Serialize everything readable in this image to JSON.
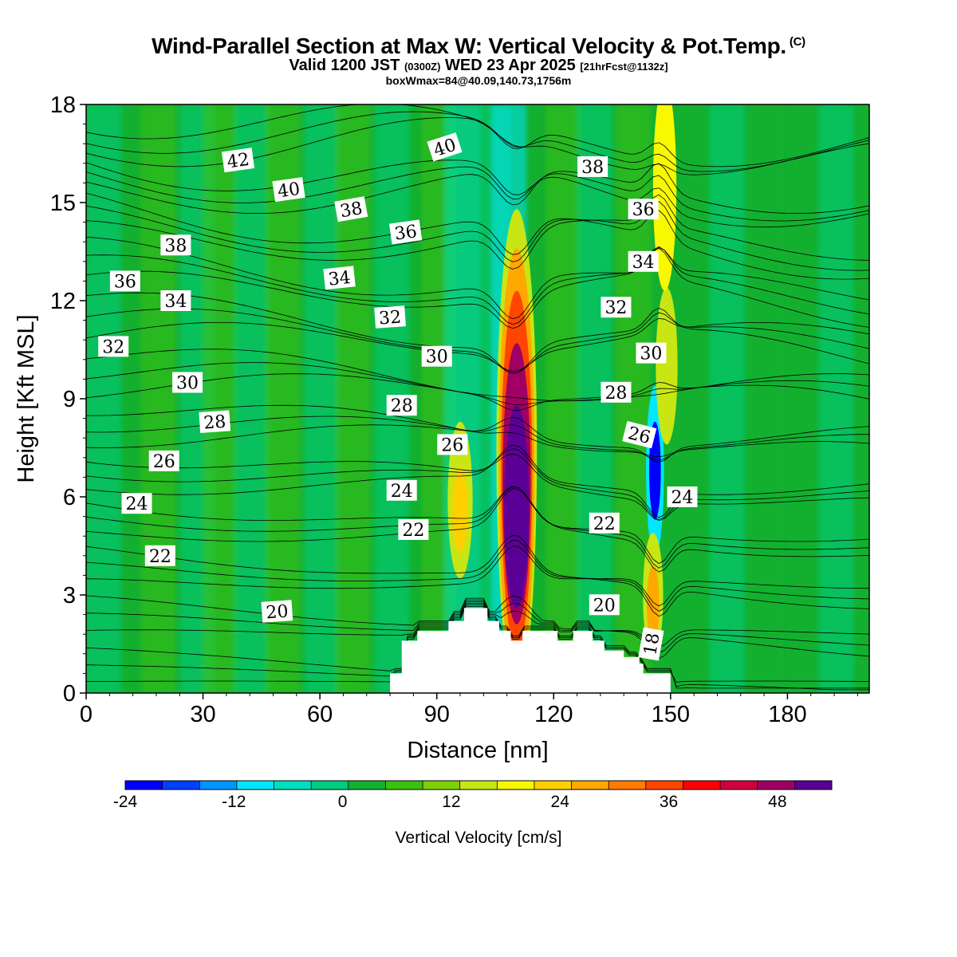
{
  "header": {
    "title": "Wind-Parallel Section at Max W: Vertical Velocity & Pot.Temp.",
    "copyright": "(C)",
    "valid_prefix": "Valid 1200 JST",
    "utc": "(0300Z)",
    "valid_suffix": "WED 23 Apr 2025",
    "fcst": "[21hrFcst@1132z]",
    "box": "boxWmax=84@40.09,140.73,1756m"
  },
  "chart_data": {
    "type": "contour",
    "xlabel": "Distance [nm]",
    "ylabel": "Height [Kft MSL]",
    "xlim": [
      0,
      201
    ],
    "ylim": [
      0,
      18
    ],
    "x_ticks": [
      "0",
      "30",
      "60",
      "90",
      "120",
      "150",
      "180"
    ],
    "y_ticks": [
      "0",
      "3",
      "6",
      "9",
      "12",
      "15",
      "18"
    ],
    "colorbar": {
      "label": "Vertical Velocity [cm/s]",
      "tick_labels": [
        "-24",
        "-12",
        "0",
        "12",
        "24",
        "36",
        "48"
      ],
      "min": -24,
      "max": 54,
      "step": 4,
      "colors": [
        "#0000ff",
        "#0040ff",
        "#0096ff",
        "#00e6ff",
        "#00e0c0",
        "#00cd82",
        "#13b030",
        "#3cc010",
        "#7ed00a",
        "#c8e614",
        "#f8f800",
        "#ffd000",
        "#ffa800",
        "#ff7c00",
        "#ff4600",
        "#ff0000",
        "#d2003c",
        "#a00064",
        "#5a0096"
      ]
    },
    "theta_label_values": [
      "42",
      "40",
      "38",
      "36",
      "34",
      "32",
      "30",
      "28",
      "26",
      "24",
      "22",
      "20",
      "18"
    ],
    "theta_labels": [
      {
        "x": 39,
        "y": 16.3,
        "text": "42",
        "rot": -8
      },
      {
        "x": 52,
        "y": 15.4,
        "text": "40",
        "rot": -8
      },
      {
        "x": 68,
        "y": 14.8,
        "text": "38",
        "rot": -10
      },
      {
        "x": 82,
        "y": 14.1,
        "text": "36",
        "rot": -8
      },
      {
        "x": 92,
        "y": 16.7,
        "text": "40",
        "rot": -18
      },
      {
        "x": 130,
        "y": 16.1,
        "text": "38",
        "rot": 0
      },
      {
        "x": 143,
        "y": 14.8,
        "text": "36",
        "rot": 0
      },
      {
        "x": 143,
        "y": 13.2,
        "text": "34",
        "rot": 0
      },
      {
        "x": 136,
        "y": 11.8,
        "text": "32",
        "rot": 0
      },
      {
        "x": 145,
        "y": 10.4,
        "text": "30",
        "rot": 0
      },
      {
        "x": 136,
        "y": 9.2,
        "text": "28",
        "rot": 0
      },
      {
        "x": 142,
        "y": 7.9,
        "text": "26",
        "rot": 14
      },
      {
        "x": 153,
        "y": 6.0,
        "text": "24",
        "rot": 0
      },
      {
        "x": 133,
        "y": 5.2,
        "text": "22",
        "rot": 0
      },
      {
        "x": 133,
        "y": 2.7,
        "text": "20",
        "rot": 0
      },
      {
        "x": 145,
        "y": 1.5,
        "text": "18",
        "rot": -80
      },
      {
        "x": 23,
        "y": 13.7,
        "text": "38",
        "rot": 0
      },
      {
        "x": 10,
        "y": 12.6,
        "text": "36",
        "rot": 0
      },
      {
        "x": 23,
        "y": 12.0,
        "text": "34",
        "rot": 0
      },
      {
        "x": 65,
        "y": 12.7,
        "text": "34",
        "rot": -6
      },
      {
        "x": 78,
        "y": 11.5,
        "text": "32",
        "rot": -4
      },
      {
        "x": 7,
        "y": 10.6,
        "text": "32",
        "rot": 0
      },
      {
        "x": 90,
        "y": 10.3,
        "text": "30",
        "rot": 0
      },
      {
        "x": 26,
        "y": 9.5,
        "text": "30",
        "rot": 0
      },
      {
        "x": 81,
        "y": 8.8,
        "text": "28",
        "rot": 0
      },
      {
        "x": 33,
        "y": 8.3,
        "text": "28",
        "rot": -4
      },
      {
        "x": 94,
        "y": 7.6,
        "text": "26",
        "rot": 0
      },
      {
        "x": 20,
        "y": 7.1,
        "text": "26",
        "rot": 0
      },
      {
        "x": 81,
        "y": 6.2,
        "text": "24",
        "rot": 0
      },
      {
        "x": 13,
        "y": 5.8,
        "text": "24",
        "rot": 0
      },
      {
        "x": 84,
        "y": 5.0,
        "text": "22",
        "rot": 0
      },
      {
        "x": 19,
        "y": 4.2,
        "text": "22",
        "rot": 0
      },
      {
        "x": 49,
        "y": 2.5,
        "text": "20",
        "rot": -4
      }
    ],
    "terrain_kft": [
      [
        0,
        0
      ],
      [
        78,
        0
      ],
      [
        78,
        0.6
      ],
      [
        81,
        0.6
      ],
      [
        81,
        1.6
      ],
      [
        85,
        1.6
      ],
      [
        85,
        1.9
      ],
      [
        93,
        1.9
      ],
      [
        93,
        2.2
      ],
      [
        97,
        2.2
      ],
      [
        97,
        2.6
      ],
      [
        103,
        2.6
      ],
      [
        103,
        2.2
      ],
      [
        106,
        2.2
      ],
      [
        106,
        1.9
      ],
      [
        109,
        1.9
      ],
      [
        109,
        1.6
      ],
      [
        112,
        1.6
      ],
      [
        112,
        1.9
      ],
      [
        121,
        1.9
      ],
      [
        121,
        1.6
      ],
      [
        125,
        1.6
      ],
      [
        125,
        1.9
      ],
      [
        130,
        1.9
      ],
      [
        130,
        1.6
      ],
      [
        133,
        1.6
      ],
      [
        133,
        1.3
      ],
      [
        138,
        1.3
      ],
      [
        138,
        1.1
      ],
      [
        142,
        1.1
      ],
      [
        142,
        0.9
      ],
      [
        143,
        0.9
      ],
      [
        143,
        0.6
      ],
      [
        150,
        0.6
      ],
      [
        150,
        0
      ],
      [
        201,
        0
      ]
    ],
    "cells": [
      {
        "x": 110.5,
        "y": 5.7,
        "rx": 3.2,
        "ry": 3.1,
        "v": 50
      },
      {
        "x": 110.5,
        "y": 6.4,
        "rx": 3.6,
        "ry": 4.3,
        "v": 44
      },
      {
        "x": 110.5,
        "y": 6.8,
        "rx": 4.0,
        "ry": 5.5,
        "v": 34
      },
      {
        "x": 110.5,
        "y": 7.0,
        "rx": 4.6,
        "ry": 6.6,
        "v": 24
      },
      {
        "x": 110.5,
        "y": 7.4,
        "rx": 5.2,
        "ry": 7.4,
        "v": 14
      },
      {
        "x": 146.0,
        "y": 6.8,
        "rx": 1.5,
        "ry": 1.5,
        "v": -22
      },
      {
        "x": 146.0,
        "y": 6.8,
        "rx": 2.3,
        "ry": 2.6,
        "v": -12
      },
      {
        "x": 145.5,
        "y": 2.7,
        "rx": 1.6,
        "ry": 1.2,
        "v": 26
      },
      {
        "x": 145.5,
        "y": 3.0,
        "rx": 2.6,
        "ry": 1.9,
        "v": 14
      },
      {
        "x": 96.0,
        "y": 5.6,
        "rx": 2.0,
        "ry": 1.3,
        "v": 22
      },
      {
        "x": 96.0,
        "y": 5.9,
        "rx": 3.2,
        "ry": 2.4,
        "v": 14
      },
      {
        "x": 148.5,
        "y": 15.5,
        "rx": 3.0,
        "ry": 3.2,
        "v": 18
      },
      {
        "x": 149.0,
        "y": 10.0,
        "rx": 2.8,
        "ry": 2.4,
        "v": 14
      }
    ]
  }
}
